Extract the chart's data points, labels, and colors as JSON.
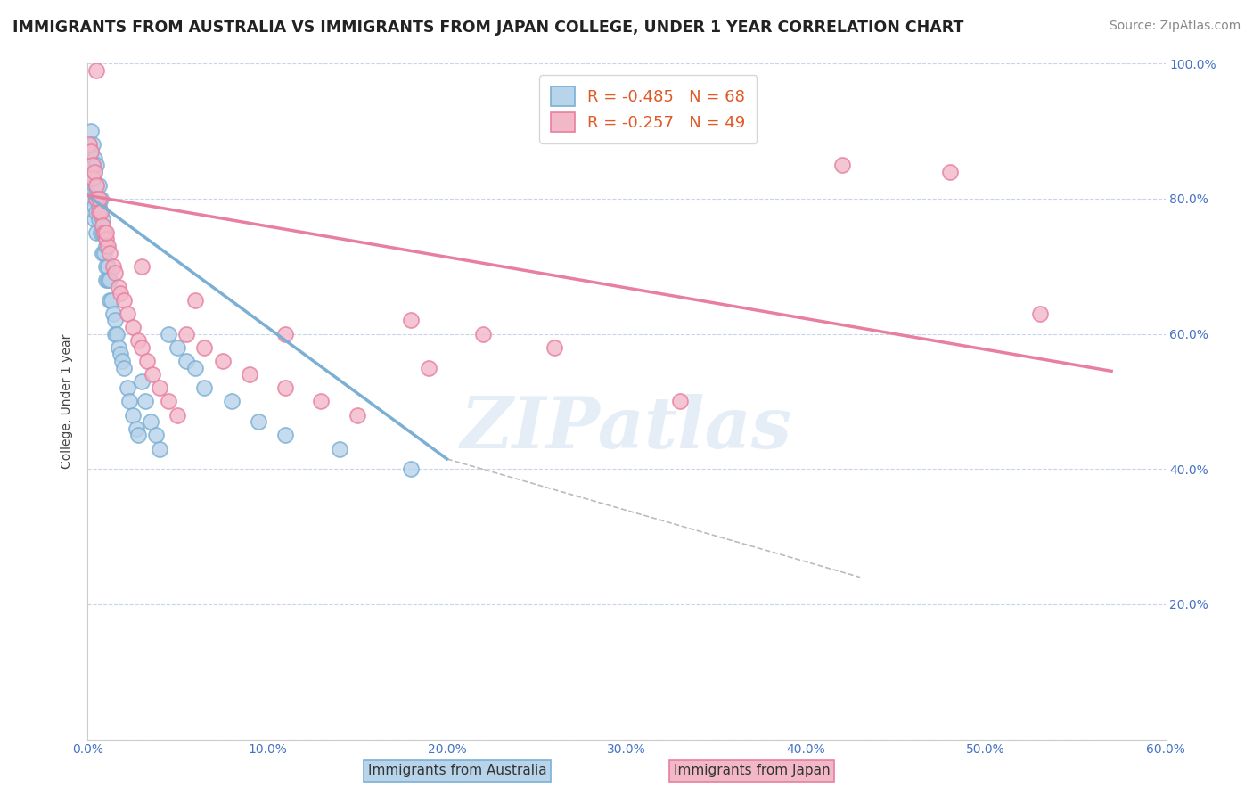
{
  "title": "IMMIGRANTS FROM AUSTRALIA VS IMMIGRANTS FROM JAPAN COLLEGE, UNDER 1 YEAR CORRELATION CHART",
  "source": "Source: ZipAtlas.com",
  "ylabel": "College, Under 1 year",
  "x_min": 0.0,
  "x_max": 0.6,
  "y_min": 0.0,
  "y_max": 1.0,
  "x_ticks": [
    0.0,
    0.1,
    0.2,
    0.3,
    0.4,
    0.5,
    0.6
  ],
  "x_tick_labels": [
    "0.0%",
    "10.0%",
    "20.0%",
    "30.0%",
    "40.0%",
    "50.0%",
    "60.0%"
  ],
  "y_ticks": [
    0.0,
    0.2,
    0.4,
    0.6,
    0.8,
    1.0
  ],
  "y_tick_labels": [
    "",
    "20.0%",
    "40.0%",
    "60.0%",
    "80.0%",
    "100.0%"
  ],
  "australia_color": "#7bafd4",
  "australia_color_fill": "#b8d4ea",
  "japan_color": "#e87fa0",
  "japan_color_fill": "#f2b8c8",
  "australia_R": -0.485,
  "australia_N": 68,
  "japan_R": -0.257,
  "japan_N": 49,
  "watermark": "ZIPatlas",
  "bg_color": "#ffffff",
  "grid_color": "#c8d4e8",
  "title_fontsize": 12.5,
  "axis_label_fontsize": 10,
  "tick_fontsize": 10,
  "legend_fontsize": 13,
  "source_fontsize": 10,
  "australia_x": [
    0.001,
    0.001,
    0.001,
    0.001,
    0.002,
    0.002,
    0.002,
    0.003,
    0.003,
    0.003,
    0.003,
    0.004,
    0.004,
    0.004,
    0.004,
    0.004,
    0.005,
    0.005,
    0.005,
    0.005,
    0.005,
    0.006,
    0.006,
    0.006,
    0.007,
    0.007,
    0.007,
    0.008,
    0.008,
    0.008,
    0.009,
    0.009,
    0.01,
    0.01,
    0.01,
    0.011,
    0.011,
    0.012,
    0.012,
    0.013,
    0.014,
    0.015,
    0.015,
    0.016,
    0.017,
    0.018,
    0.019,
    0.02,
    0.022,
    0.023,
    0.025,
    0.027,
    0.028,
    0.03,
    0.032,
    0.035,
    0.038,
    0.04,
    0.045,
    0.05,
    0.055,
    0.06,
    0.065,
    0.08,
    0.095,
    0.11,
    0.14,
    0.18
  ],
  "australia_y": [
    0.88,
    0.86,
    0.84,
    0.82,
    0.9,
    0.87,
    0.85,
    0.88,
    0.85,
    0.83,
    0.8,
    0.86,
    0.84,
    0.82,
    0.79,
    0.77,
    0.85,
    0.82,
    0.8,
    0.78,
    0.75,
    0.82,
    0.79,
    0.77,
    0.8,
    0.78,
    0.75,
    0.77,
    0.75,
    0.72,
    0.75,
    0.72,
    0.73,
    0.7,
    0.68,
    0.7,
    0.68,
    0.68,
    0.65,
    0.65,
    0.63,
    0.62,
    0.6,
    0.6,
    0.58,
    0.57,
    0.56,
    0.55,
    0.52,
    0.5,
    0.48,
    0.46,
    0.45,
    0.53,
    0.5,
    0.47,
    0.45,
    0.43,
    0.6,
    0.58,
    0.56,
    0.55,
    0.52,
    0.5,
    0.47,
    0.45,
    0.43,
    0.4
  ],
  "japan_x": [
    0.001,
    0.002,
    0.003,
    0.003,
    0.004,
    0.005,
    0.005,
    0.006,
    0.006,
    0.007,
    0.008,
    0.009,
    0.01,
    0.011,
    0.012,
    0.014,
    0.015,
    0.017,
    0.018,
    0.02,
    0.022,
    0.025,
    0.028,
    0.03,
    0.033,
    0.036,
    0.04,
    0.045,
    0.05,
    0.055,
    0.065,
    0.075,
    0.09,
    0.11,
    0.13,
    0.15,
    0.18,
    0.22,
    0.26,
    0.01,
    0.03,
    0.06,
    0.11,
    0.19,
    0.33,
    0.42,
    0.48,
    0.53,
    0.005
  ],
  "japan_y": [
    0.88,
    0.87,
    0.85,
    0.83,
    0.84,
    0.82,
    0.8,
    0.8,
    0.78,
    0.78,
    0.76,
    0.75,
    0.74,
    0.73,
    0.72,
    0.7,
    0.69,
    0.67,
    0.66,
    0.65,
    0.63,
    0.61,
    0.59,
    0.58,
    0.56,
    0.54,
    0.52,
    0.5,
    0.48,
    0.6,
    0.58,
    0.56,
    0.54,
    0.52,
    0.5,
    0.48,
    0.62,
    0.6,
    0.58,
    0.75,
    0.7,
    0.65,
    0.6,
    0.55,
    0.5,
    0.85,
    0.84,
    0.63,
    0.99
  ],
  "aus_line_x0": 0.0,
  "aus_line_x1": 0.2,
  "aus_line_y0": 0.805,
  "aus_line_y1": 0.415,
  "jpn_line_x0": 0.0,
  "jpn_line_x1": 0.57,
  "jpn_line_y0": 0.805,
  "jpn_line_y1": 0.545,
  "dash_line_x0": 0.2,
  "dash_line_x1": 0.43,
  "dash_line_y0": 0.415,
  "dash_line_y1": 0.24
}
